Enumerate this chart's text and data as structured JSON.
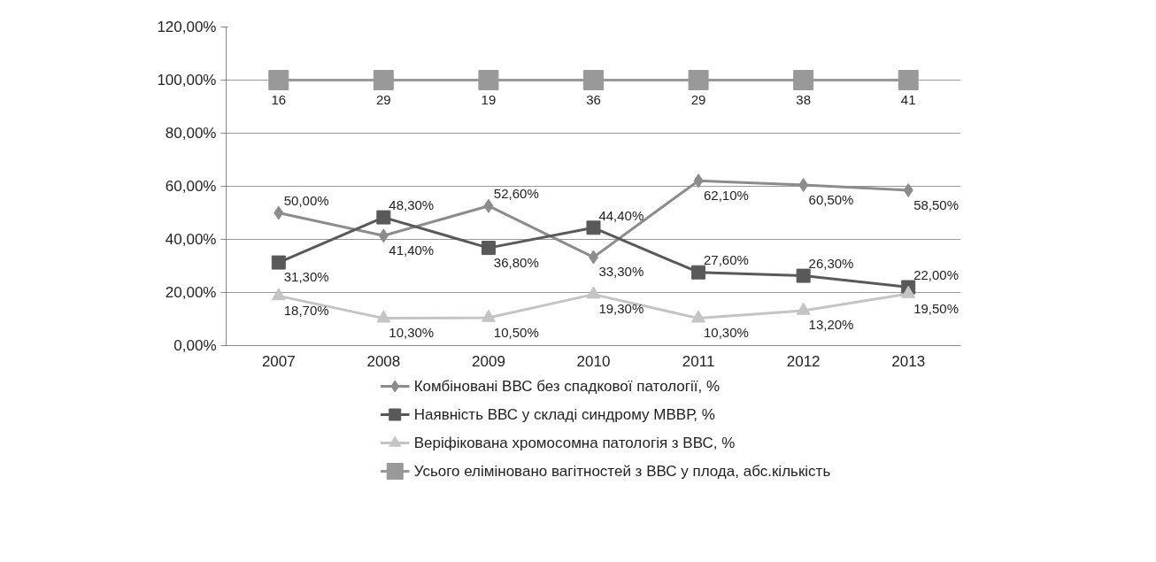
{
  "chart_data": {
    "type": "line",
    "categories": [
      "2007",
      "2008",
      "2009",
      "2010",
      "2011",
      "2012",
      "2013"
    ],
    "ylim": [
      0,
      120
    ],
    "yticks": [
      {
        "value": 0,
        "label": "0,00%"
      },
      {
        "value": 20,
        "label": "20,00%"
      },
      {
        "value": 40,
        "label": "40,00%"
      },
      {
        "value": 60,
        "label": "60,00%"
      },
      {
        "value": 80,
        "label": "80,00%"
      },
      {
        "value": 100,
        "label": "100,00%"
      },
      {
        "value": 120,
        "label": "120,00%"
      }
    ],
    "grid": "y",
    "legend": "bottom",
    "line_style": "solid",
    "series": [
      {
        "name": "Комбіновані ВВС без спадкової патології, %",
        "color": "#8c8c8c",
        "marker": "diamond",
        "values": [
          50.0,
          41.4,
          52.6,
          33.3,
          62.1,
          60.5,
          58.5
        ],
        "value_labels": [
          "50,00%",
          "41,40%",
          "52,60%",
          "33,30%",
          "62,10%",
          "60,50%",
          "58,50%"
        ]
      },
      {
        "name": "Наявність ВВС у складі синдрому МВВР, %",
        "color": "#595959",
        "marker": "square",
        "values": [
          31.3,
          48.3,
          36.8,
          44.4,
          27.6,
          26.3,
          22.0
        ],
        "value_labels": [
          "31,30%",
          "48,30%",
          "36,80%",
          "44,40%",
          "27,60%",
          "26,30%",
          "22,00%"
        ]
      },
      {
        "name": "Веріфікована хромосомна патологія з ВВС, %",
        "color": "#c4c4c4",
        "marker": "triangle",
        "values": [
          18.7,
          10.3,
          10.5,
          19.3,
          10.3,
          13.2,
          19.5
        ],
        "value_labels": [
          "18,70%",
          "10,30%",
          "10,50%",
          "19,30%",
          "10,30%",
          "13,20%",
          "19,50%"
        ]
      },
      {
        "name": "Усього елiміновано вагітностей з ВВС у плода, абс.кількість",
        "color": "#999999",
        "marker": "square",
        "values": [
          100,
          100,
          100,
          100,
          100,
          100,
          100
        ]
      }
    ],
    "annotations": [
      {
        "text": "16",
        "x": "2007",
        "y": 100
      },
      {
        "text": "29",
        "x": "2008",
        "y": 100
      },
      {
        "text": "19",
        "x": "2009",
        "y": 100
      },
      {
        "text": "36",
        "x": "2010",
        "y": 100
      },
      {
        "text": "29",
        "x": "2011",
        "y": 100
      },
      {
        "text": "38",
        "x": "2012",
        "y": 100
      },
      {
        "text": "41",
        "x": "2013",
        "y": 100
      }
    ]
  }
}
